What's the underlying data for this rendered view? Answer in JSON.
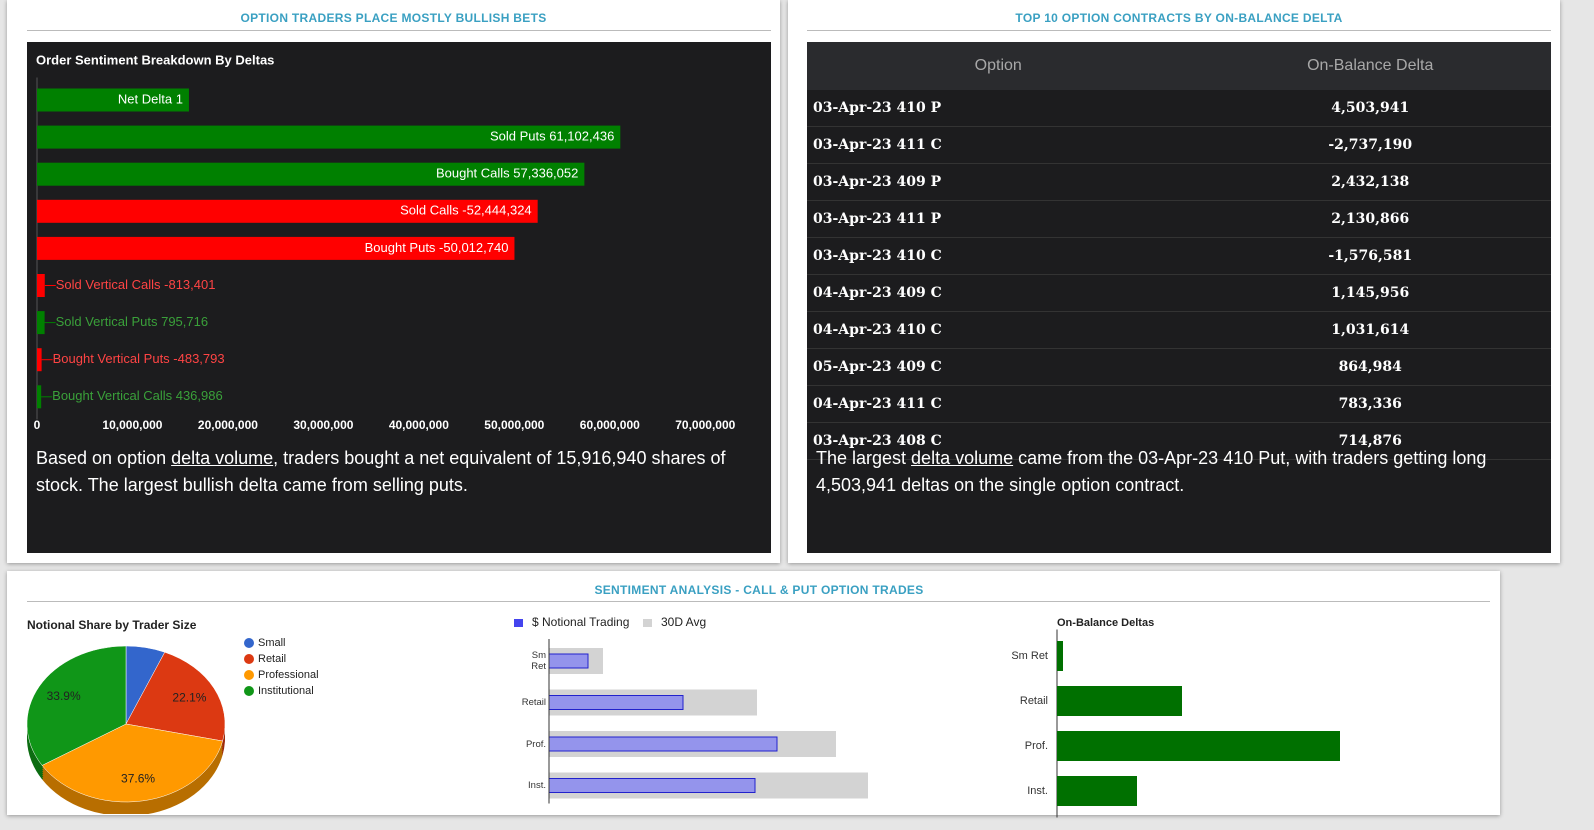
{
  "headers": {
    "left": "OPTION TRADERS PLACE MOSTLY BULLISH BETS",
    "right": "TOP 10 OPTION CONTRACTS BY ON-BALANCE DELTA",
    "bottom": "SENTIMENT ANALYSIS - CALL & PUT OPTION TRADES"
  },
  "chart_data": [
    {
      "type": "bar",
      "orientation": "horizontal",
      "label_position": "bar_end",
      "title": "Order Sentiment Breakdown By Deltas",
      "categories": [
        "Net Delta 1",
        "Sold Puts 61,102,436",
        "Bought Calls 57,336,052",
        "Sold Calls -52,444,324",
        "Bought Puts -50,012,740",
        "Sold Vertical Calls -813,401",
        "Sold Vertical Puts 795,716",
        "Bought Vertical Puts -483,793",
        "Bought Vertical Calls 436,986"
      ],
      "values": [
        15916940,
        61102436,
        57336052,
        52444324,
        50012740,
        813401,
        795716,
        483793,
        436986
      ],
      "colors": [
        "#008000",
        "#008000",
        "#008000",
        "#ff0000",
        "#ff0000",
        "#ff0000",
        "#008000",
        "#ff0000",
        "#008000"
      ],
      "xlim": [
        0,
        75000000
      ],
      "xticks": [
        0,
        {
          "value": 10000000,
          "label": "10,000,000"
        },
        {
          "value": 20000000,
          "label": "20,000,000"
        },
        {
          "value": 30000000,
          "label": "30,000,000"
        },
        {
          "value": 40000000,
          "label": "40,000,000"
        },
        {
          "value": 50000000,
          "label": "50,000,000"
        },
        {
          "value": 60000000,
          "label": "60,000,000"
        },
        {
          "value": 70000000,
          "label": "70,000,000"
        }
      ]
    },
    {
      "type": "pie",
      "title": "Notional Share by Trader Size",
      "categories": [
        "Small",
        "Retail",
        "Professional",
        "Institutional"
      ],
      "values": [
        6.4,
        22.1,
        37.6,
        33.9
      ],
      "value_labels": [
        null,
        "22.1%",
        "37.6%",
        "33.9%"
      ],
      "colors": [
        "#3366cc",
        "#dc3912",
        "#ff9900",
        "#109618"
      ]
    },
    {
      "type": "grouped_bar",
      "orientation": "horizontal",
      "categories": [
        "Sm Ret",
        "Retail",
        "Prof.",
        "Inst."
      ],
      "series": [
        {
          "name": "$ Notional Trading",
          "color": "#9494ec",
          "values": [
            39,
            134,
            228,
            206
          ]
        },
        {
          "name": "30D Avg",
          "color": "#d3d3d3",
          "values": [
            54,
            208,
            287,
            319
          ]
        }
      ],
      "xlim": [
        0,
        340
      ]
    },
    {
      "type": "bar",
      "orientation": "horizontal",
      "label_position": "axis",
      "title": "On-Balance Deltas",
      "categories": [
        "Sm Ret",
        "Retail",
        "Prof.",
        "Inst."
      ],
      "values": [
        6,
        125,
        283,
        80
      ],
      "color": "#007000",
      "xlim": [
        0,
        340
      ]
    }
  ],
  "table": {
    "columns": [
      "Option",
      "On-Balance Delta"
    ],
    "rows": [
      [
        "03-Apr-23 410 P",
        "4,503,941"
      ],
      [
        "03-Apr-23 411 C",
        "-2,737,190"
      ],
      [
        "03-Apr-23 409 P",
        "2,432,138"
      ],
      [
        "03-Apr-23 411 P",
        "2,130,866"
      ],
      [
        "03-Apr-23 410 C",
        "-1,576,581"
      ],
      [
        "04-Apr-23 409 C",
        "1,145,956"
      ],
      [
        "04-Apr-23 410 C",
        "1,031,614"
      ],
      [
        "05-Apr-23 409 C",
        "864,984"
      ],
      [
        "04-Apr-23 411 C",
        "783,336"
      ],
      [
        "03-Apr-23 408 C",
        "714,876"
      ]
    ]
  },
  "summaries": {
    "left": [
      "Based on option ",
      "delta volume",
      ", traders bought a net equivalent of 15,916,940 shares of stock. The largest bullish delta came from selling puts."
    ],
    "right": [
      "The largest ",
      "delta volume",
      " came from the 03-Apr-23 410 Put, with traders getting long 4,503,941 deltas on the single option contract."
    ]
  }
}
